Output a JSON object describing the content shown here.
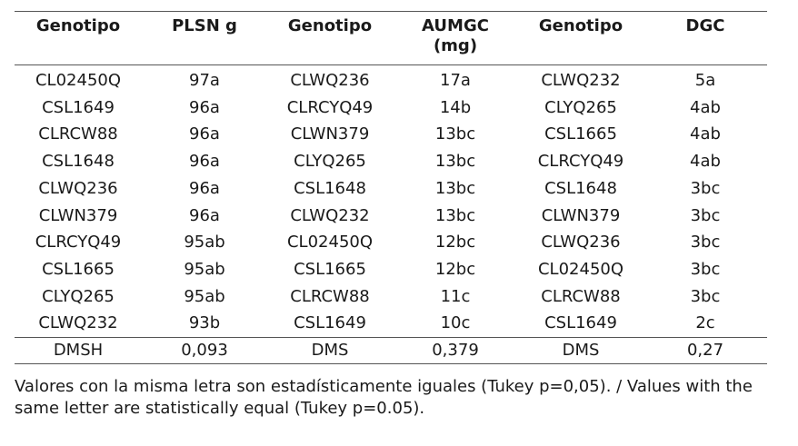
{
  "table": {
    "headers": [
      "Genotipo",
      "PLSN g",
      "Genotipo",
      "AUMGC",
      "Genotipo",
      "DGC"
    ],
    "header_sub": [
      "",
      "",
      "",
      "(mg)",
      "",
      ""
    ],
    "rows": [
      [
        "CL02450Q",
        "97a",
        "CLWQ236",
        "17a",
        "CLWQ232",
        "5a"
      ],
      [
        "CSL1649",
        "96a",
        "CLRCYQ49",
        "14b",
        "CLYQ265",
        "4ab"
      ],
      [
        "CLRCW88",
        "96a",
        "CLWN379",
        "13bc",
        "CSL1665",
        "4ab"
      ],
      [
        "CSL1648",
        "96a",
        "CLYQ265",
        "13bc",
        "CLRCYQ49",
        "4ab"
      ],
      [
        "CLWQ236",
        "96a",
        "CSL1648",
        "13bc",
        "CSL1648",
        "3bc"
      ],
      [
        "CLWN379",
        "96a",
        "CLWQ232",
        "13bc",
        "CLWN379",
        "3bc"
      ],
      [
        "CLRCYQ49",
        "95ab",
        "CL02450Q",
        "12bc",
        "CLWQ236",
        "3bc"
      ],
      [
        "CSL1665",
        "95ab",
        "CSL1665",
        "12bc",
        "CL02450Q",
        "3bc"
      ],
      [
        "CLYQ265",
        "95ab",
        "CLRCW88",
        "11c",
        "CLRCW88",
        "3bc"
      ],
      [
        "CLWQ232",
        "93b",
        "CSL1649",
        "10c",
        "CSL1649",
        "2c"
      ]
    ],
    "footer": [
      "DMSH",
      "0,093",
      "DMS",
      "0,379",
      "DMS",
      "0,27"
    ]
  },
  "note": "Valores con la misma letra son estadísticamente iguales (Tukey p=0,05). / Values with the same letter are statistically equal (Tukey p=0.05)."
}
